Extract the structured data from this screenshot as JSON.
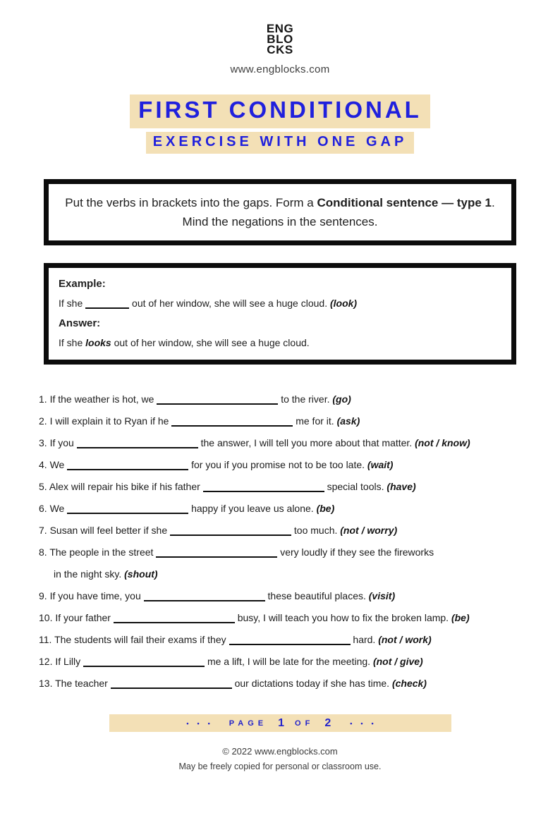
{
  "colors": {
    "accent_blue": "#2020dd",
    "highlight_tan": "#f3e0b6"
  },
  "header": {
    "logo_lines": [
      "ENG",
      "BLO",
      "CKS"
    ],
    "website": "www.engblocks.com",
    "title": "FIRST CONDITIONAL",
    "subtitle": "EXERCISE WITH ONE GAP"
  },
  "instructions": {
    "text_pre": "Put the verbs in brackets into the gaps. Form a ",
    "text_bold": "Conditional sentence — type 1",
    "text_post": ". Mind the negations in the sentences."
  },
  "example": {
    "label": "Example:",
    "sentence_pre": "If she",
    "sentence_post": "out of her window, she will see a huge cloud.",
    "verb_hint": "(look)",
    "answer_label": "Answer:",
    "answer_pre": "If she",
    "answer_word": "looks",
    "answer_post": "out of her window, she will see a huge cloud."
  },
  "exercise": {
    "items": [
      {
        "num": "1.",
        "pre": "If the weather is hot, we",
        "post": "to the river.",
        "verb": "(go)"
      },
      {
        "num": "2.",
        "pre": "I will explain it to Ryan if he",
        "post": "me for it.",
        "verb": "(ask)"
      },
      {
        "num": "3.",
        "pre": "If you",
        "post": "the answer, I will tell you more about that matter.",
        "verb": "(not / know)"
      },
      {
        "num": "4.",
        "pre": "We",
        "post": "for you if you promise not to be too late.",
        "verb": "(wait)"
      },
      {
        "num": "5.",
        "pre": "Alex will repair his bike if his father",
        "post": "special tools.",
        "verb": "(have)"
      },
      {
        "num": "6.",
        "pre": "We",
        "post": "happy if you leave us alone.",
        "verb": "(be)"
      },
      {
        "num": "7.",
        "pre": "Susan will feel better if she",
        "post": "too much.",
        "verb": "(not / worry)"
      },
      {
        "num": "8.",
        "pre": "The people in the street",
        "post": "very loudly if they see the fireworks",
        "post2": "in the night sky.",
        "verb": "(shout)"
      },
      {
        "num": "9.",
        "pre": "If you have time, you",
        "post": "these beautiful places.",
        "verb": "(visit)"
      },
      {
        "num": "10.",
        "pre": "If your father",
        "post": "busy, I will teach you how to fix the broken lamp.",
        "verb": "(be)"
      },
      {
        "num": "11.",
        "pre": "The students will fail their exams if they",
        "post": "hard.",
        "verb": "(not / work)"
      },
      {
        "num": "12.",
        "pre": "If Lilly",
        "post": "me a lift, I will be late for the meeting.",
        "verb": "(not / give)"
      },
      {
        "num": "13.",
        "pre": "The teacher",
        "post": "our dictations today if she has time.",
        "verb": "(check)"
      }
    ]
  },
  "footer": {
    "dots": "•••",
    "page_label": "PAGE",
    "page_current": "1",
    "of_label": "OF",
    "page_total": "2",
    "copyright": "© 2022 www.engblocks.com",
    "license": "May be freely copied for personal or classroom use."
  }
}
